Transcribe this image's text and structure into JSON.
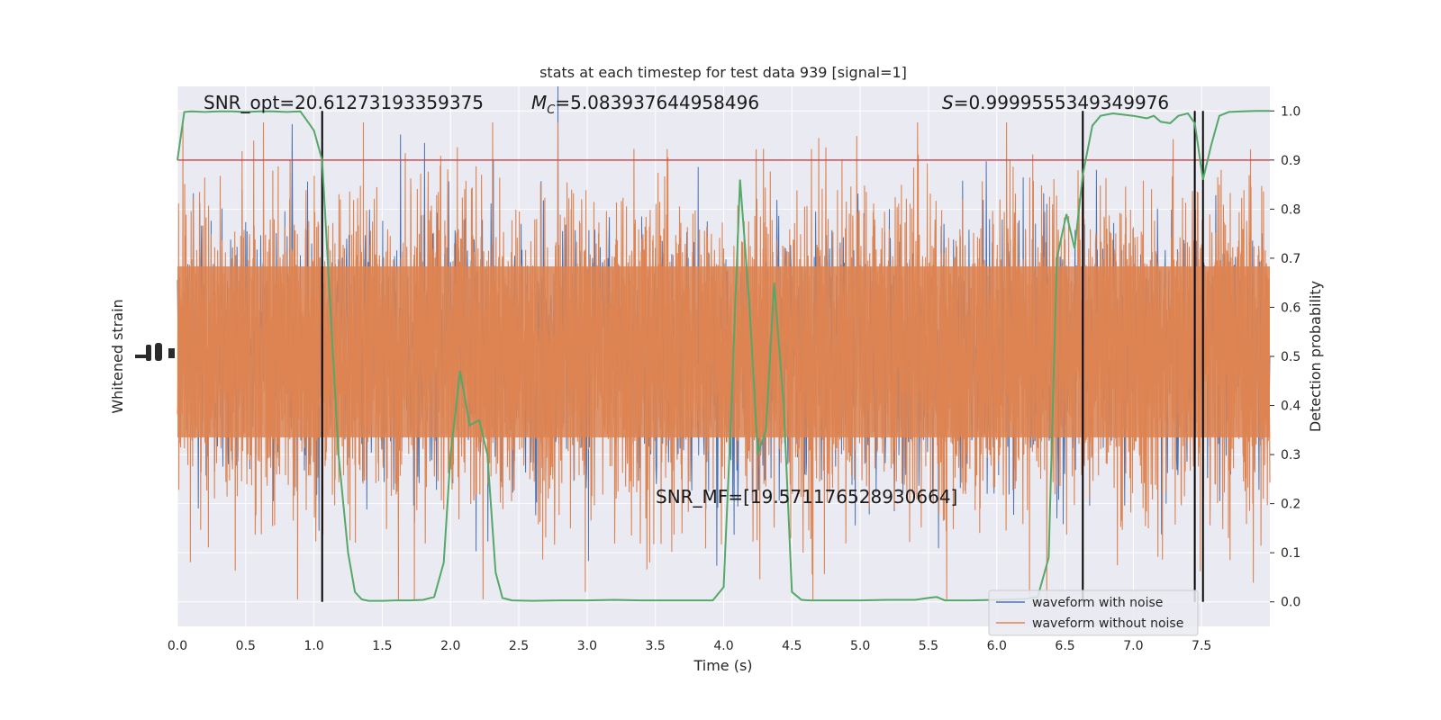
{
  "chart_data": {
    "type": "line",
    "title": "stats at each timestep for test data 939 [signal=1]",
    "xlabel": "Time (s)",
    "ylabel_left": "Whitened strain",
    "ylabel_right": "Detection probability",
    "xlim": [
      0,
      8
    ],
    "ylim_right": [
      -0.05,
      1.05
    ],
    "x_ticks": [
      "0.0",
      "0.5",
      "1.0",
      "1.5",
      "2.0",
      "2.5",
      "3.0",
      "3.5",
      "4.0",
      "4.5",
      "5.0",
      "5.5",
      "6.0",
      "6.5",
      "7.0",
      "7.5"
    ],
    "x_tick_values": [
      0,
      0.5,
      1,
      1.5,
      2,
      2.5,
      3,
      3.5,
      4,
      4.5,
      5,
      5.5,
      6,
      6.5,
      7,
      7.5
    ],
    "y_right_ticks": [
      "0.0",
      "0.1",
      "0.2",
      "0.3",
      "0.4",
      "0.5",
      "0.6",
      "0.7",
      "0.8",
      "0.9",
      "1.0"
    ],
    "y_right_tick_values": [
      0,
      0.1,
      0.2,
      0.3,
      0.4,
      0.5,
      0.6,
      0.7,
      0.8,
      0.9,
      1.0
    ],
    "grid": true,
    "legend_position": "lower-right",
    "annotations": {
      "snr_opt": "SNR_opt=20.61273193359375",
      "mc_symbol": "M",
      "mc_sub": "C",
      "mc_value": "=5.083937644958496",
      "s_symbol": "S",
      "s_value": "=0.9999555349349976",
      "snr_mf": "SNR_MF=[19.571176528930664]"
    },
    "threshold": 0.9,
    "vertical_lines": [
      1.06,
      6.63,
      7.45,
      7.51
    ],
    "series": [
      {
        "name": "waveform with noise",
        "color": "#4c72b0"
      },
      {
        "name": "waveform without noise",
        "color": "#dd8452"
      }
    ],
    "probability_series": {
      "color": "#55a868",
      "x": [
        0,
        0.05,
        0.1,
        0.2,
        0.3,
        0.4,
        0.5,
        0.6,
        0.7,
        0.8,
        0.9,
        0.95,
        1.0,
        1.06,
        1.12,
        1.18,
        1.25,
        1.3,
        1.35,
        1.4,
        1.5,
        1.6,
        1.7,
        1.8,
        1.88,
        1.95,
        2.0,
        2.07,
        2.14,
        2.21,
        2.27,
        2.33,
        2.38,
        2.45,
        2.6,
        2.8,
        3.0,
        3.2,
        3.4,
        3.6,
        3.8,
        3.92,
        4.0,
        4.05,
        4.12,
        4.19,
        4.25,
        4.31,
        4.37,
        4.44,
        4.5,
        4.57,
        4.63,
        4.8,
        5.0,
        5.2,
        5.4,
        5.5,
        5.56,
        5.62,
        5.8,
        6.0,
        6.2,
        6.3,
        6.38,
        6.44,
        6.51,
        6.57,
        6.63,
        6.7,
        6.76,
        6.85,
        7.0,
        7.1,
        7.15,
        7.2,
        7.27,
        7.33,
        7.4,
        7.45,
        7.51,
        7.57,
        7.63,
        7.7,
        7.8,
        7.9,
        8.0
      ],
      "y": [
        0.9,
        0.998,
        0.999,
        0.998,
        0.999,
        0.999,
        0.998,
        0.999,
        0.999,
        0.998,
        0.999,
        0.98,
        0.96,
        0.9,
        0.6,
        0.3,
        0.1,
        0.02,
        0.005,
        0.002,
        0.002,
        0.003,
        0.003,
        0.004,
        0.01,
        0.08,
        0.3,
        0.47,
        0.36,
        0.37,
        0.3,
        0.06,
        0.008,
        0.003,
        0.002,
        0.003,
        0.003,
        0.004,
        0.003,
        0.003,
        0.003,
        0.003,
        0.03,
        0.35,
        0.86,
        0.6,
        0.3,
        0.35,
        0.65,
        0.4,
        0.02,
        0.004,
        0.003,
        0.003,
        0.003,
        0.004,
        0.004,
        0.008,
        0.01,
        0.003,
        0.003,
        0.004,
        0.006,
        0.01,
        0.09,
        0.7,
        0.79,
        0.72,
        0.87,
        0.97,
        0.99,
        0.995,
        0.99,
        0.985,
        0.99,
        0.978,
        0.975,
        0.99,
        0.995,
        0.975,
        0.86,
        0.93,
        0.99,
        0.998,
        0.999,
        1.0,
        1.0
      ]
    }
  }
}
